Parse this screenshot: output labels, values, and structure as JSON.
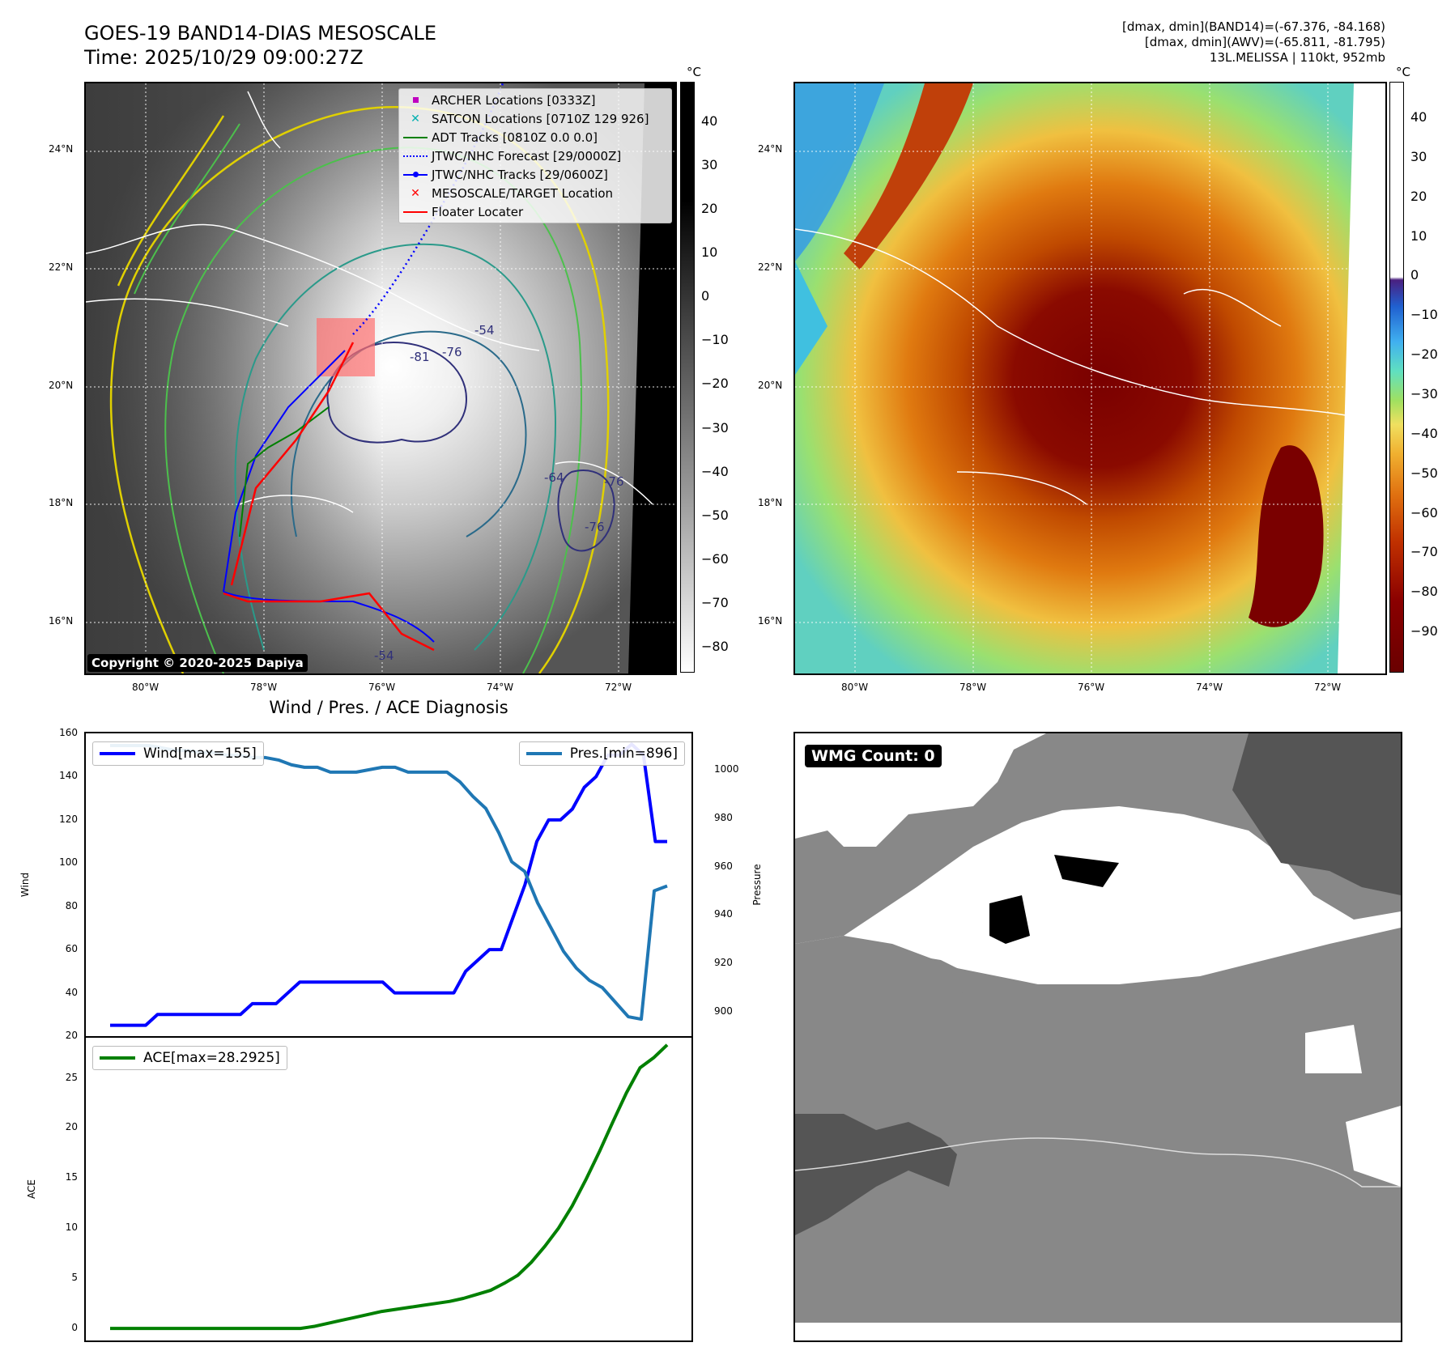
{
  "header": {
    "title_line1": "GOES-19 BAND14-DIAS MESOSCALE",
    "title_line2": "Time: 2025/10/29 09:00:27Z",
    "info_line1": "[dmax, dmin](BAND14)=(-67.376, -84.168)",
    "info_line2": "[dmax, dmin](AWV)=(-65.811, -81.795)",
    "info_line3": "13L.MELISSA | 110kt, 952mb"
  },
  "map_axes": {
    "lat_labels": [
      "24°N",
      "22°N",
      "20°N",
      "18°N",
      "16°N"
    ],
    "lon_labels": [
      "80°W",
      "78°W",
      "76°W",
      "74°W",
      "72°W"
    ]
  },
  "ir_panel": {
    "colorbar_unit": "°C",
    "colorbar_ticks": [
      "40",
      "30",
      "20",
      "10",
      "0",
      "−10",
      "−20",
      "−30",
      "−40",
      "−50",
      "−60",
      "−70",
      "−80"
    ],
    "legend": [
      {
        "label": "ARCHER Locations [0333Z]",
        "color": "#c000c0",
        "symbol": "square"
      },
      {
        "label": "SATCON Locations [0710Z 129 926]",
        "color": "#00b0b0",
        "symbol": "x"
      },
      {
        "label": "ADT Tracks [0810Z 0.0 0.0]",
        "color": "#008000",
        "symbol": "line"
      },
      {
        "label": "JTWC/NHC Forecast [29/0000Z]",
        "color": "#0000ff",
        "symbol": "dotted"
      },
      {
        "label": "JTWC/NHC Tracks [29/0600Z]",
        "color": "#0000ff",
        "symbol": "line-dot"
      },
      {
        "label": "MESOSCALE/TARGET Location",
        "color": "#ff0000",
        "symbol": "x"
      },
      {
        "label": "Floater Locater",
        "color": "#ff0000",
        "symbol": "line"
      }
    ],
    "contour_labels": [
      "-81",
      "-76",
      "-76",
      "-64",
      "-76",
      "-54",
      "-54"
    ],
    "copyright": "Copyright © 2020-2025 Dapiya"
  },
  "awv_panel": {
    "colorbar_unit": "°C",
    "colorbar_ticks": [
      "40",
      "30",
      "20",
      "10",
      "0",
      "−10",
      "−20",
      "−30",
      "−40",
      "−50",
      "−60",
      "−70",
      "−80",
      "−90"
    ]
  },
  "wmg_panel": {
    "badge": "WMG Count: 0"
  },
  "chart_data": [
    {
      "type": "line",
      "title": "Wind / Pres. / ACE Diagnosis",
      "ylabel": "Wind",
      "ylabel_right": "Pressure",
      "ylim": [
        20,
        160
      ],
      "ylim_right": [
        890,
        1015
      ],
      "yticks": [
        20,
        40,
        60,
        80,
        100,
        120,
        140,
        160
      ],
      "yticks_right": [
        900,
        920,
        940,
        960,
        980,
        1000
      ],
      "series": [
        {
          "name": "Wind[max=155]",
          "color": "#0000ff",
          "axis": "left",
          "values": [
            25,
            25,
            25,
            25,
            30,
            30,
            30,
            30,
            30,
            30,
            30,
            30,
            35,
            35,
            35,
            40,
            45,
            45,
            45,
            45,
            45,
            45,
            45,
            45,
            40,
            40,
            40,
            40,
            40,
            40,
            50,
            55,
            60,
            60,
            75,
            90,
            110,
            120,
            120,
            125,
            135,
            140,
            150,
            150,
            155,
            150,
            110,
            110
          ]
        },
        {
          "name": "Pres.[min=896]",
          "color": "#1f77b4",
          "axis": "right",
          "values": [
            1010,
            1010,
            1010,
            1010,
            1009,
            1008,
            1008,
            1007,
            1007,
            1006,
            1006,
            1005,
            1005,
            1004,
            1002,
            1001,
            1001,
            999,
            999,
            999,
            1000,
            1001,
            1001,
            999,
            999,
            999,
            999,
            995,
            989,
            984,
            974,
            962,
            958,
            945,
            935,
            925,
            918,
            913,
            910,
            904,
            898,
            897,
            950,
            952
          ]
        }
      ]
    },
    {
      "type": "line",
      "ylabel": "ACE",
      "ylim": [
        -1.2,
        29
      ],
      "yticks": [
        0,
        5,
        10,
        15,
        20,
        25
      ],
      "series": [
        {
          "name": "ACE[max=28.2925]",
          "color": "#008000",
          "values": [
            0,
            0,
            0,
            0,
            0,
            0,
            0,
            0,
            0,
            0,
            0,
            0,
            0,
            0,
            0,
            0.2,
            0.5,
            0.8,
            1.1,
            1.4,
            1.7,
            1.9,
            2.1,
            2.3,
            2.5,
            2.7,
            3.0,
            3.4,
            3.8,
            4.5,
            5.3,
            6.6,
            8.2,
            10.0,
            12.2,
            14.8,
            17.6,
            20.6,
            23.5,
            26.0,
            27.0,
            28.2925
          ]
        }
      ]
    }
  ]
}
